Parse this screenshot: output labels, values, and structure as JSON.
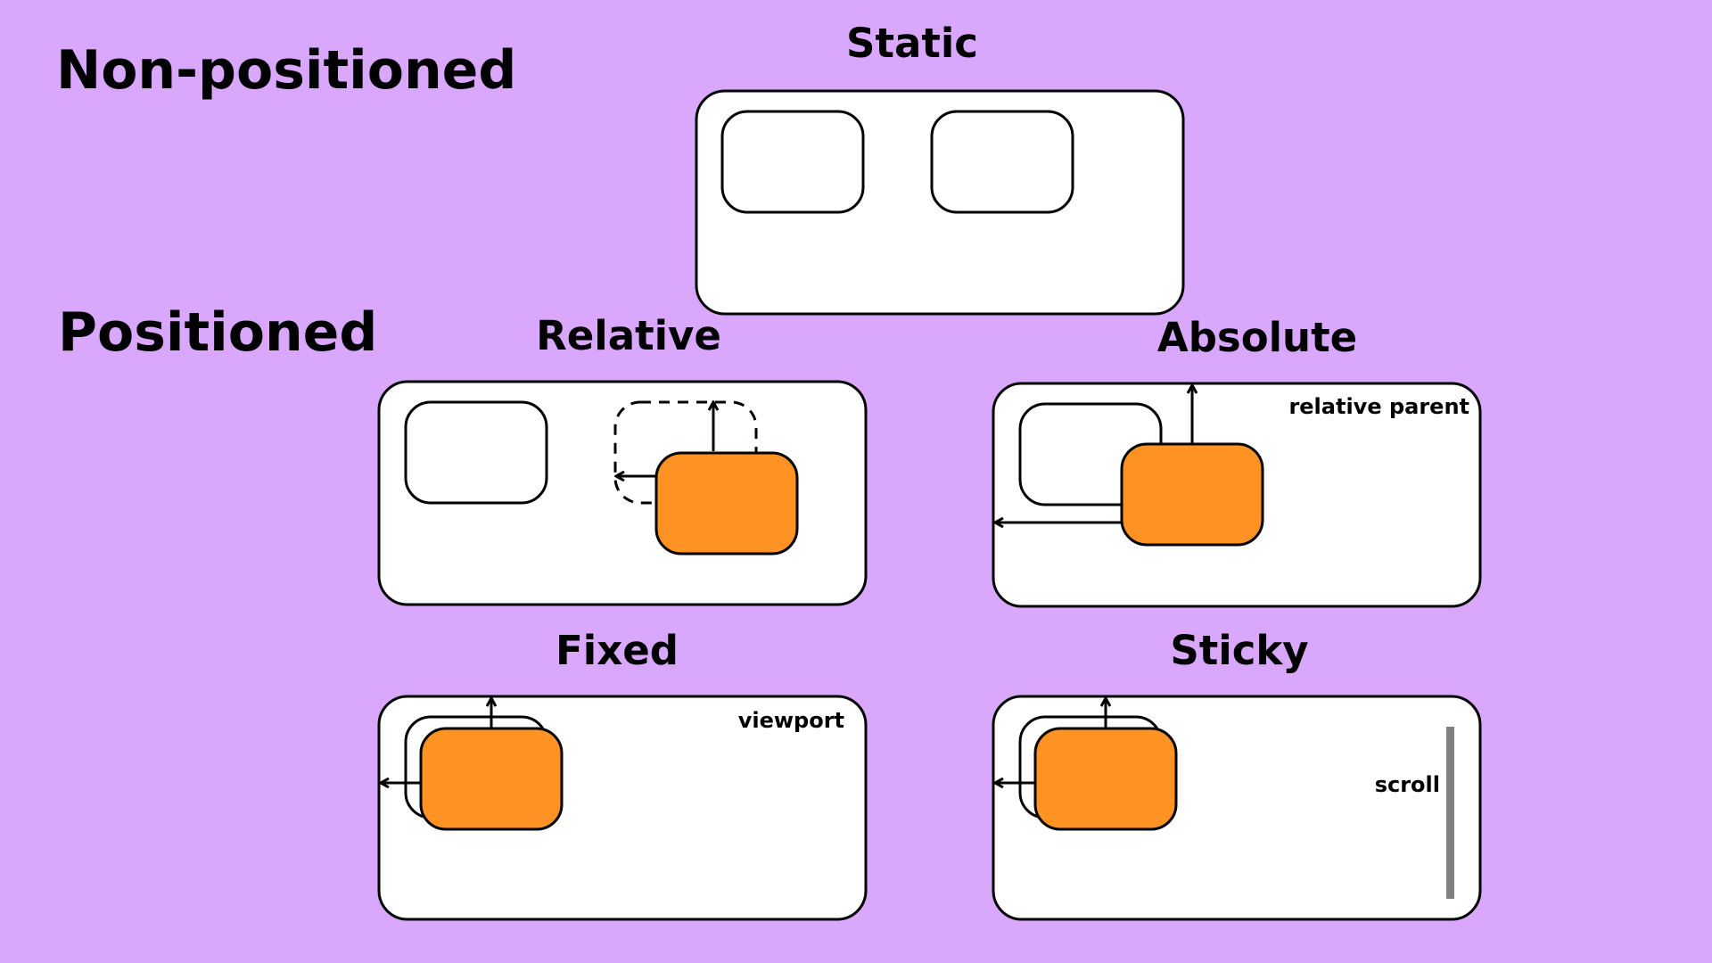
{
  "sections": {
    "non_positioned": "Non-positioned",
    "positioned": "Positioned"
  },
  "panels": {
    "static": {
      "title": "Static"
    },
    "relative": {
      "title": "Relative"
    },
    "absolute": {
      "title": "Absolute",
      "note": "relative parent"
    },
    "fixed": {
      "title": "Fixed",
      "note": "viewport"
    },
    "sticky": {
      "title": "Sticky",
      "note": "scroll"
    }
  },
  "colors": {
    "background": "#d9a8fd",
    "panel": "#ffffff",
    "positioned_box": "#fe9222",
    "scrollbar": "#808080"
  }
}
